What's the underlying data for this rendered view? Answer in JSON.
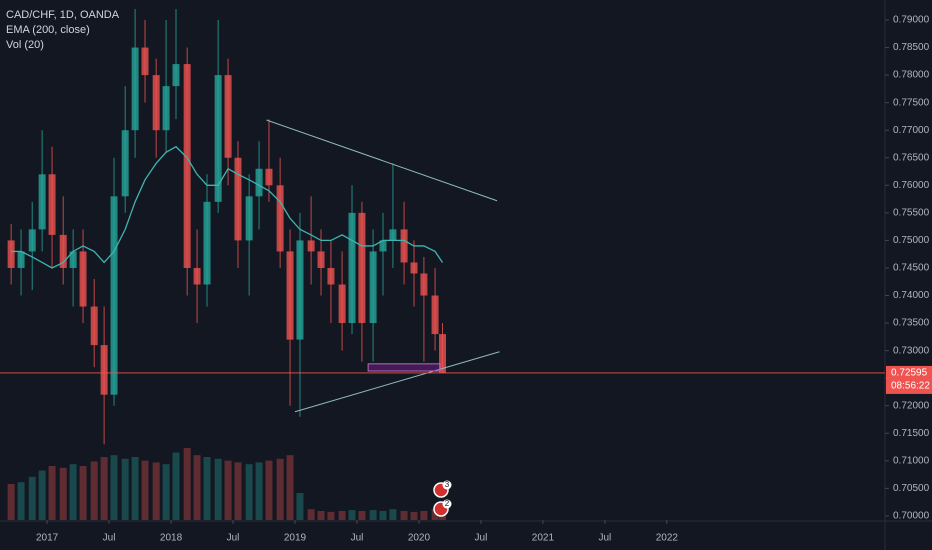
{
  "chart_data": {
    "type": "candlestick",
    "title": "CAD/CHF, 1D, OANDA",
    "indicators": [
      "EMA (200, close)",
      "Vol (20)"
    ],
    "x": [
      2016.71,
      2016.79,
      2016.88,
      2016.96,
      2017.04,
      2017.13,
      2017.21,
      2017.29,
      2017.38,
      2017.46,
      2017.54,
      2017.63,
      2017.71,
      2017.79,
      2017.88,
      2017.96,
      2018.04,
      2018.13,
      2018.21,
      2018.29,
      2018.38,
      2018.46,
      2018.54,
      2018.63,
      2018.71,
      2018.79,
      2018.88,
      2018.96,
      2019.04,
      2019.13,
      2019.21,
      2019.29,
      2019.38,
      2019.46,
      2019.54,
      2019.63,
      2019.71,
      2019.79,
      2019.88,
      2019.96,
      2020.04,
      2020.13,
      2020.19
    ],
    "open": [
      0.75,
      0.745,
      0.748,
      0.752,
      0.762,
      0.751,
      0.745,
      0.748,
      0.738,
      0.731,
      0.722,
      0.758,
      0.77,
      0.785,
      0.78,
      0.77,
      0.778,
      0.782,
      0.745,
      0.742,
      0.757,
      0.78,
      0.765,
      0.75,
      0.758,
      0.763,
      0.76,
      0.748,
      0.732,
      0.75,
      0.748,
      0.745,
      0.742,
      0.735,
      0.755,
      0.735,
      0.748,
      0.75,
      0.752,
      0.746,
      0.744,
      0.74,
      0.733
    ],
    "high": [
      0.753,
      0.752,
      0.757,
      0.77,
      0.767,
      0.758,
      0.752,
      0.752,
      0.743,
      0.738,
      0.765,
      0.778,
      0.792,
      0.79,
      0.783,
      0.79,
      0.792,
      0.785,
      0.752,
      0.762,
      0.79,
      0.783,
      0.768,
      0.762,
      0.768,
      0.772,
      0.765,
      0.752,
      0.755,
      0.758,
      0.752,
      0.75,
      0.748,
      0.76,
      0.757,
      0.752,
      0.755,
      0.764,
      0.757,
      0.75,
      0.747,
      0.745,
      0.735
    ],
    "low": [
      0.742,
      0.74,
      0.741,
      0.748,
      0.745,
      0.742,
      0.738,
      0.735,
      0.727,
      0.713,
      0.72,
      0.755,
      0.765,
      0.775,
      0.765,
      0.766,
      0.772,
      0.74,
      0.735,
      0.738,
      0.755,
      0.76,
      0.745,
      0.74,
      0.752,
      0.757,
      0.745,
      0.72,
      0.718,
      0.742,
      0.74,
      0.735,
      0.73,
      0.733,
      0.728,
      0.728,
      0.74,
      0.745,
      0.742,
      0.738,
      0.728,
      0.73,
      0.726
    ],
    "close": [
      0.745,
      0.748,
      0.752,
      0.762,
      0.751,
      0.745,
      0.748,
      0.738,
      0.731,
      0.722,
      0.758,
      0.77,
      0.785,
      0.78,
      0.77,
      0.778,
      0.782,
      0.745,
      0.742,
      0.757,
      0.78,
      0.765,
      0.75,
      0.758,
      0.763,
      0.76,
      0.748,
      0.732,
      0.75,
      0.748,
      0.745,
      0.742,
      0.735,
      0.755,
      0.735,
      0.748,
      0.75,
      0.752,
      0.746,
      0.744,
      0.74,
      0.733,
      0.72595
    ],
    "ema": [
      0.748,
      0.748,
      0.747,
      0.746,
      0.745,
      0.746,
      0.748,
      0.749,
      0.748,
      0.746,
      0.748,
      0.752,
      0.757,
      0.761,
      0.764,
      0.766,
      0.767,
      0.765,
      0.762,
      0.76,
      0.76,
      0.763,
      0.762,
      0.761,
      0.76,
      0.759,
      0.757,
      0.754,
      0.752,
      0.751,
      0.75,
      0.75,
      0.751,
      0.75,
      0.749,
      0.749,
      0.75,
      0.75,
      0.75,
      0.749,
      0.749,
      0.748,
      0.746
    ],
    "volume": [
      40,
      42,
      48,
      55,
      60,
      58,
      62,
      60,
      65,
      70,
      72,
      68,
      70,
      66,
      64,
      62,
      75,
      80,
      72,
      70,
      68,
      66,
      64,
      62,
      64,
      66,
      68,
      72,
      30,
      12,
      10,
      9,
      10,
      11,
      10,
      11,
      10,
      12,
      10,
      9,
      10,
      12,
      14
    ],
    "vlim": [
      0,
      100
    ],
    "up_color": "#26a69a",
    "down_color": "#ef5350",
    "ema_color": "#3fb5b0",
    "xlim": [
      2016.62,
      2023.76
    ],
    "ylim": [
      0.69926,
      0.79363
    ],
    "xticks": [
      {
        "value": 2017,
        "label": "2017"
      },
      {
        "value": 2017.5,
        "label": "Jul"
      },
      {
        "value": 2018,
        "label": "2018"
      },
      {
        "value": 2018.5,
        "label": "Jul"
      },
      {
        "value": 2019,
        "label": "2019"
      },
      {
        "value": 2019.5,
        "label": "Jul"
      },
      {
        "value": 2020,
        "label": "2020"
      },
      {
        "value": 2020.5,
        "label": "Jul"
      },
      {
        "value": 2021,
        "label": "2021"
      },
      {
        "value": 2021.5,
        "label": "Jul"
      },
      {
        "value": 2022,
        "label": "2022"
      }
    ],
    "yticks": [
      {
        "value": 0.79,
        "label": "0.79000"
      },
      {
        "value": 0.785,
        "label": "0.78500"
      },
      {
        "value": 0.78,
        "label": "0.78000"
      },
      {
        "value": 0.775,
        "label": "0.77500"
      },
      {
        "value": 0.77,
        "label": "0.77000"
      },
      {
        "value": 0.765,
        "label": "0.76500"
      },
      {
        "value": 0.76,
        "label": "0.76000"
      },
      {
        "value": 0.755,
        "label": "0.75500"
      },
      {
        "value": 0.75,
        "label": "0.75000"
      },
      {
        "value": 0.745,
        "label": "0.74500"
      },
      {
        "value": 0.74,
        "label": "0.74000"
      },
      {
        "value": 0.735,
        "label": "0.73500"
      },
      {
        "value": 0.73,
        "label": "0.73000"
      },
      {
        "value": 0.725,
        "label": "0.72500"
      },
      {
        "value": 0.72,
        "label": "0.72000"
      },
      {
        "value": 0.715,
        "label": "0.71500"
      },
      {
        "value": 0.71,
        "label": "0.71000"
      },
      {
        "value": 0.705,
        "label": "0.70500"
      },
      {
        "value": 0.7,
        "label": "0.70000"
      }
    ],
    "trendlines": [
      {
        "x": [
          2018.77,
          2020.63
        ],
        "y": [
          0.77185,
          0.7572
        ]
      },
      {
        "x": [
          2019.0,
          2020.65
        ],
        "y": [
          0.7189,
          0.7298
        ]
      }
    ],
    "zone": {
      "x": [
        2019.59,
        2020.17
      ],
      "y": [
        0.7263,
        0.7276
      ]
    },
    "last_price": {
      "value": 0.72595,
      "label": "0.72595",
      "countdown": "08:56:22"
    },
    "events": [
      {
        "label": "3"
      },
      {
        "label": "2"
      }
    ]
  }
}
